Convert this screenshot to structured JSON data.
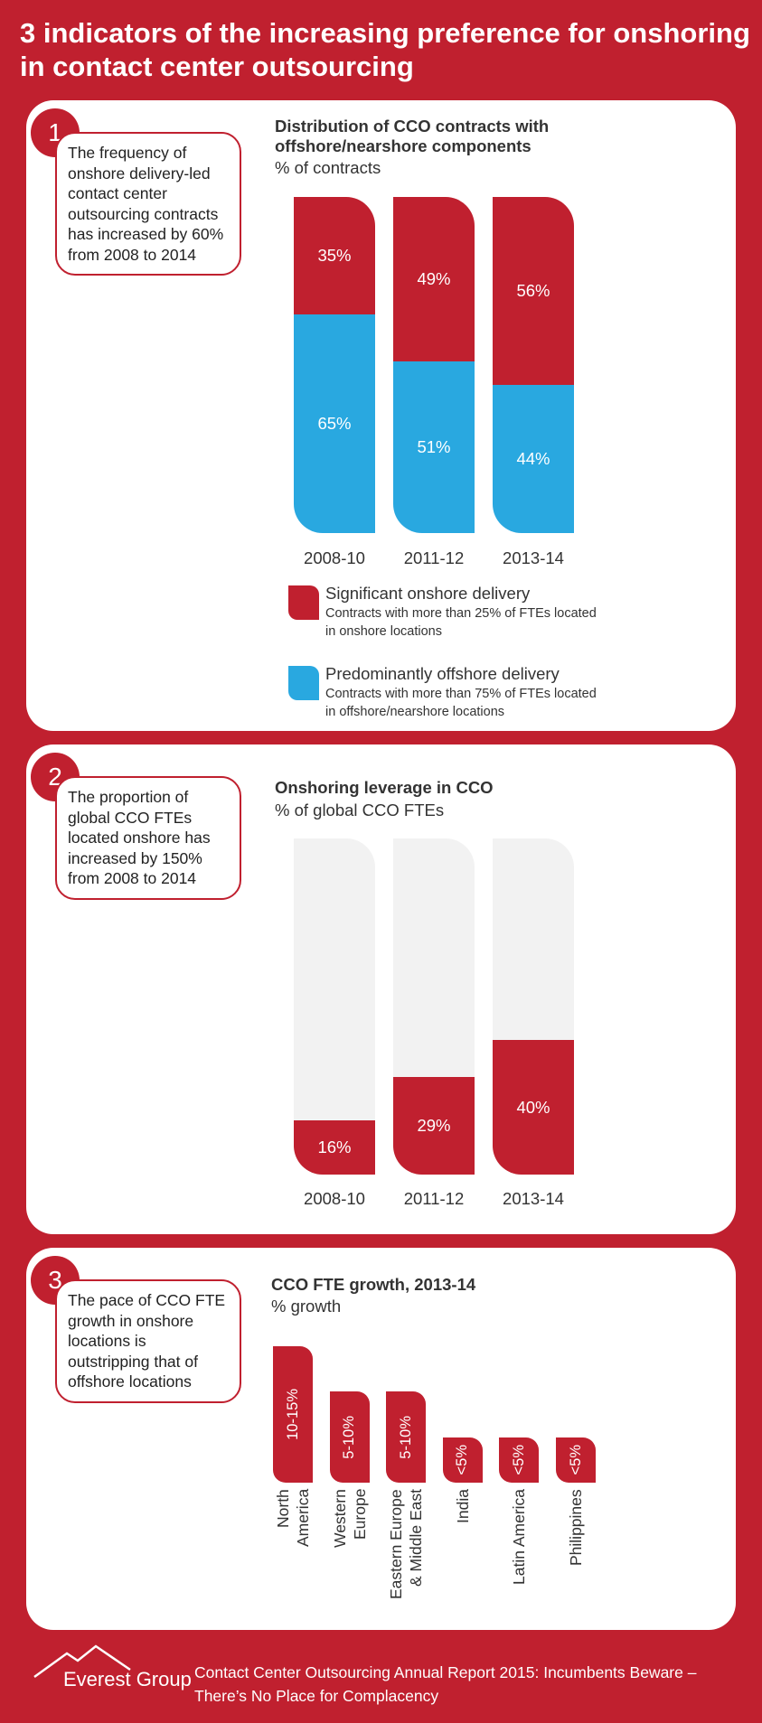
{
  "title": "3 indicators of the increasing preference for onshoring in contact center outsourcing",
  "panels": [
    {
      "number": "1",
      "text": "The frequency of onshore delivery-led contact center outsourcing contracts has increased by 60% from 2008 to 2014"
    },
    {
      "number": "2",
      "text": "The proportion of global CCO FTEs located onshore has increased by 150% from 2008 to 2014"
    },
    {
      "number": "3",
      "text": "The pace of CCO FTE growth in onshore locations is outstripping that of offshore locations"
    }
  ],
  "chart_data": [
    {
      "type": "stacked_bar",
      "title": "Distribution of CCO contracts with offshore/nearshore components",
      "subtitle": "% of contracts",
      "categories": [
        "2008-10",
        "2011-12",
        "2013-14"
      ],
      "series": [
        {
          "name": "Significant onshore delivery",
          "description": "Contracts with more than 25% of FTEs located in onshore locations",
          "color": "#c0202f",
          "values": [
            35,
            49,
            56
          ],
          "value_labels": [
            "35%",
            "49%",
            "56%"
          ]
        },
        {
          "name": "Predominantly offshore delivery",
          "description": "Contracts with more than 75% of FTEs located in offshore/nearshore locations",
          "color": "#29a8e0",
          "values": [
            65,
            51,
            44
          ],
          "value_labels": [
            "65%",
            "51%",
            "44%"
          ]
        }
      ],
      "ylim": [
        0,
        100
      ]
    },
    {
      "type": "bar",
      "title": "Onshoring leverage in CCO",
      "subtitle": "% of global CCO FTEs",
      "categories": [
        "2008-10",
        "2011-12",
        "2013-14"
      ],
      "values": [
        16,
        29,
        40
      ],
      "value_labels": [
        "16%",
        "29%",
        "40%"
      ],
      "color": "#c0202f",
      "track_color": "#f2f2f2",
      "ylim": [
        0,
        100
      ]
    },
    {
      "type": "bar",
      "title": "CCO FTE growth, 2013-14",
      "subtitle": "% growth",
      "categories": [
        "North America",
        "Western Europe",
        "Eastern Europe & Middle East",
        "India",
        "Latin America",
        "Philippines"
      ],
      "values": [
        15,
        10,
        10,
        5,
        5,
        5
      ],
      "value_labels": [
        "10-15%",
        "5-10%",
        "5-10%",
        "<5%",
        "<5%",
        "<5%"
      ],
      "color": "#c0202f",
      "vertical_labels": true,
      "ylim": [
        0,
        15
      ]
    }
  ],
  "footer": {
    "brand": "Everest Group",
    "text": "Contact Center Outsourcing Annual Report 2015: Incumbents Beware – There’s No Place for Complacency"
  }
}
